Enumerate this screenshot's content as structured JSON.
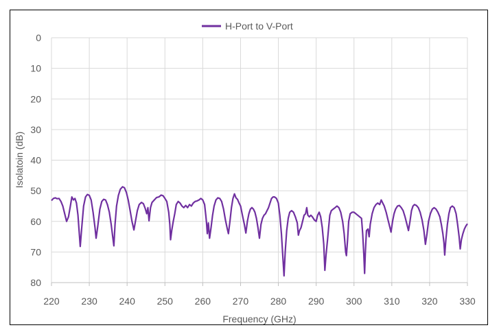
{
  "chart_data": {
    "type": "line",
    "title": "",
    "xlabel": "Frequency (GHz)",
    "ylabel": "Isolatoin (dB)",
    "xlim": [
      220,
      330
    ],
    "ylim": [
      0,
      80
    ],
    "y_inverted": true,
    "x_ticks": [
      220,
      230,
      240,
      250,
      260,
      270,
      280,
      290,
      300,
      310,
      320,
      330
    ],
    "y_ticks": [
      0,
      10,
      20,
      30,
      40,
      50,
      60,
      70,
      80
    ],
    "grid": true,
    "legend_position": "top-center",
    "series": [
      {
        "name": "H-Port to V-Port",
        "color": "#7030A0",
        "points": [
          [
            220,
            53.2
          ],
          [
            220.5,
            52.5
          ],
          [
            221,
            52.3
          ],
          [
            221.5,
            52.6
          ],
          [
            222,
            52.5
          ],
          [
            222.5,
            53.5
          ],
          [
            223,
            55
          ],
          [
            223.6,
            58
          ],
          [
            224,
            60
          ],
          [
            224.5,
            58.5
          ],
          [
            225,
            55
          ],
          [
            225.4,
            52
          ],
          [
            225.8,
            53
          ],
          [
            226.2,
            52.5
          ],
          [
            226.6,
            54
          ],
          [
            227,
            58
          ],
          [
            227.3,
            63
          ],
          [
            227.6,
            68.2
          ],
          [
            228,
            62
          ],
          [
            228.5,
            55
          ],
          [
            229,
            52
          ],
          [
            229.5,
            51.2
          ],
          [
            230,
            51.5
          ],
          [
            230.5,
            53
          ],
          [
            231,
            57
          ],
          [
            231.5,
            62
          ],
          [
            231.8,
            65.5
          ],
          [
            232.2,
            62
          ],
          [
            232.8,
            56
          ],
          [
            233.3,
            53.5
          ],
          [
            233.8,
            52.8
          ],
          [
            234.3,
            53
          ],
          [
            234.8,
            54.5
          ],
          [
            235.3,
            57
          ],
          [
            235.8,
            61
          ],
          [
            236.2,
            65
          ],
          [
            236.5,
            68
          ],
          [
            236.8,
            61
          ],
          [
            237.2,
            55
          ],
          [
            237.7,
            51.5
          ],
          [
            238.2,
            49.5
          ],
          [
            238.8,
            48.7
          ],
          [
            239.3,
            49
          ],
          [
            239.8,
            50.5
          ],
          [
            240.3,
            53
          ],
          [
            240.8,
            56.5
          ],
          [
            241.3,
            60
          ],
          [
            241.8,
            62.8
          ],
          [
            242.2,
            60
          ],
          [
            242.7,
            56.5
          ],
          [
            243.2,
            54.5
          ],
          [
            243.8,
            53.8
          ],
          [
            244.3,
            54.2
          ],
          [
            244.8,
            55.8
          ],
          [
            245.2,
            57.5
          ],
          [
            245.5,
            55.5
          ],
          [
            245.8,
            59.8
          ],
          [
            246.2,
            55.5
          ],
          [
            246.6,
            53.8
          ],
          [
            247.2,
            53
          ],
          [
            247.8,
            52.2
          ],
          [
            248.4,
            52
          ],
          [
            249,
            51.4
          ],
          [
            249.5,
            51.6
          ],
          [
            250,
            52.5
          ],
          [
            250.5,
            53.5
          ],
          [
            251,
            57
          ],
          [
            251.3,
            61
          ],
          [
            251.5,
            66
          ],
          [
            251.8,
            63
          ],
          [
            252.2,
            60
          ],
          [
            252.6,
            57.5
          ],
          [
            253,
            54.5
          ],
          [
            253.5,
            53.5
          ],
          [
            254,
            54
          ],
          [
            254.5,
            55
          ],
          [
            255,
            55.5
          ],
          [
            255.5,
            54.8
          ],
          [
            256,
            55.5
          ],
          [
            256.5,
            54.5
          ],
          [
            257,
            55
          ],
          [
            257.5,
            54
          ],
          [
            258,
            53.5
          ],
          [
            258.5,
            53.3
          ],
          [
            259,
            53
          ],
          [
            259.5,
            52.5
          ],
          [
            260,
            53
          ],
          [
            260.5,
            54.5
          ],
          [
            260.8,
            58
          ],
          [
            261,
            60.5
          ],
          [
            261.2,
            64
          ],
          [
            261.5,
            60.5
          ],
          [
            261.8,
            65.5
          ],
          [
            262.2,
            62
          ],
          [
            262.6,
            58
          ],
          [
            263,
            55
          ],
          [
            263.5,
            53
          ],
          [
            264,
            52.3
          ],
          [
            264.5,
            52.5
          ],
          [
            265,
            53.5
          ],
          [
            265.5,
            56
          ],
          [
            266,
            59.5
          ],
          [
            266.5,
            62.5
          ],
          [
            266.8,
            64
          ],
          [
            267.2,
            60
          ],
          [
            267.6,
            55.5
          ],
          [
            268,
            52.5
          ],
          [
            268.4,
            51
          ],
          [
            268.8,
            52.3
          ],
          [
            269.2,
            52.8
          ],
          [
            269.6,
            54
          ],
          [
            270,
            55
          ],
          [
            270.5,
            58
          ],
          [
            271,
            61
          ],
          [
            271.4,
            63.8
          ],
          [
            271.8,
            60
          ],
          [
            272.2,
            57.5
          ],
          [
            272.6,
            56
          ],
          [
            273,
            55.5
          ],
          [
            273.4,
            56
          ],
          [
            273.8,
            57
          ],
          [
            274.2,
            59
          ],
          [
            274.6,
            62
          ],
          [
            275,
            65.5
          ],
          [
            275.4,
            61
          ],
          [
            275.8,
            59
          ],
          [
            276.2,
            58
          ],
          [
            276.6,
            57.5
          ],
          [
            277,
            56.5
          ],
          [
            277.4,
            55.5
          ],
          [
            277.8,
            54
          ],
          [
            278.2,
            52.5
          ],
          [
            278.6,
            52
          ],
          [
            279,
            52
          ],
          [
            279.5,
            52.5
          ],
          [
            280,
            54
          ],
          [
            280.4,
            58
          ],
          [
            280.8,
            64
          ],
          [
            281.2,
            72
          ],
          [
            281.5,
            77.8
          ],
          [
            281.8,
            70
          ],
          [
            282.2,
            63
          ],
          [
            282.6,
            59
          ],
          [
            283,
            57
          ],
          [
            283.5,
            56.5
          ],
          [
            284,
            57
          ],
          [
            284.5,
            58.5
          ],
          [
            285,
            60.5
          ],
          [
            285.3,
            64.5
          ],
          [
            285.6,
            63
          ],
          [
            286,
            62
          ],
          [
            286.4,
            60
          ],
          [
            286.8,
            58
          ],
          [
            287.2,
            57.5
          ],
          [
            287.5,
            55.5
          ],
          [
            287.8,
            58
          ],
          [
            288.2,
            58.5
          ],
          [
            288.6,
            58
          ],
          [
            289,
            58.5
          ],
          [
            289.5,
            59.5
          ],
          [
            290,
            60
          ],
          [
            290.4,
            58
          ],
          [
            290.8,
            57
          ],
          [
            291.2,
            58.5
          ],
          [
            291.6,
            62
          ],
          [
            292,
            67.5
          ],
          [
            292.3,
            76
          ],
          [
            292.6,
            71
          ],
          [
            293,
            66
          ],
          [
            293.3,
            62
          ],
          [
            293.6,
            58
          ],
          [
            294,
            56.5
          ],
          [
            294.5,
            56
          ],
          [
            295,
            55.5
          ],
          [
            295.5,
            55
          ],
          [
            296,
            55.5
          ],
          [
            296.5,
            57
          ],
          [
            297,
            60
          ],
          [
            297.4,
            64
          ],
          [
            297.8,
            70
          ],
          [
            298,
            71.2
          ],
          [
            298.3,
            66
          ],
          [
            298.6,
            60
          ],
          [
            299,
            57.5
          ],
          [
            299.5,
            57
          ],
          [
            300,
            57
          ],
          [
            300.5,
            57.5
          ],
          [
            301,
            58
          ],
          [
            301.5,
            58.5
          ],
          [
            302,
            59
          ],
          [
            302.3,
            64
          ],
          [
            302.6,
            71
          ],
          [
            302.8,
            77
          ],
          [
            303,
            70
          ],
          [
            303.3,
            63
          ],
          [
            303.7,
            62.5
          ],
          [
            304,
            65
          ],
          [
            304.3,
            61
          ],
          [
            304.8,
            57.5
          ],
          [
            305.3,
            55.5
          ],
          [
            305.8,
            54.5
          ],
          [
            306.3,
            54
          ],
          [
            306.8,
            54.5
          ],
          [
            307.2,
            53
          ],
          [
            307.6,
            54
          ],
          [
            308,
            55
          ],
          [
            308.5,
            57
          ],
          [
            309,
            59.5
          ],
          [
            309.5,
            62
          ],
          [
            309.8,
            63.5
          ],
          [
            310.2,
            60
          ],
          [
            310.6,
            57.5
          ],
          [
            311,
            56
          ],
          [
            311.5,
            55
          ],
          [
            312,
            54.8
          ],
          [
            312.5,
            55.5
          ],
          [
            313,
            56.5
          ],
          [
            313.5,
            58.5
          ],
          [
            314,
            61
          ],
          [
            314.4,
            63
          ],
          [
            314.8,
            60
          ],
          [
            315.2,
            56.5
          ],
          [
            315.6,
            55
          ],
          [
            316,
            54.5
          ],
          [
            316.5,
            54.8
          ],
          [
            317,
            55.5
          ],
          [
            317.5,
            57
          ],
          [
            318,
            59.5
          ],
          [
            318.5,
            63
          ],
          [
            318.9,
            67.5
          ],
          [
            319.3,
            64
          ],
          [
            319.7,
            60
          ],
          [
            320.2,
            57.5
          ],
          [
            320.7,
            56
          ],
          [
            321.2,
            55.5
          ],
          [
            321.7,
            56
          ],
          [
            322.2,
            57
          ],
          [
            322.7,
            58.5
          ],
          [
            323.1,
            61
          ],
          [
            323.5,
            64
          ],
          [
            323.8,
            67
          ],
          [
            324,
            71
          ],
          [
            324.3,
            66
          ],
          [
            324.7,
            61
          ],
          [
            325.1,
            57.5
          ],
          [
            325.5,
            55.5
          ],
          [
            326,
            55
          ],
          [
            326.5,
            55.5
          ],
          [
            327,
            57.5
          ],
          [
            327.4,
            61
          ],
          [
            327.8,
            65
          ],
          [
            328.1,
            69
          ],
          [
            328.4,
            66
          ],
          [
            328.8,
            64
          ],
          [
            329.2,
            62.5
          ],
          [
            329.6,
            61.5
          ],
          [
            330,
            60.8
          ]
        ]
      }
    ]
  }
}
